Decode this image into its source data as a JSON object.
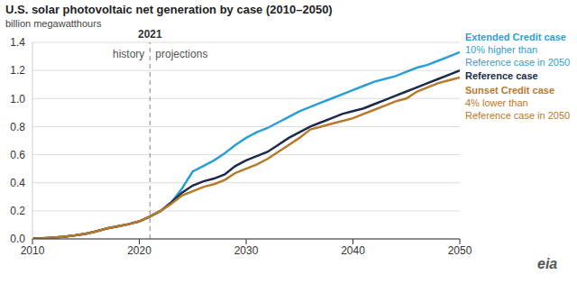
{
  "chart_data": {
    "type": "line",
    "title": "U.S. solar photovoltaic net generation by case (2010–2050)",
    "subtitle": "billion megawatthours",
    "x": [
      2010,
      2011,
      2012,
      2013,
      2014,
      2015,
      2016,
      2017,
      2018,
      2019,
      2020,
      2021,
      2022,
      2023,
      2024,
      2025,
      2026,
      2027,
      2028,
      2029,
      2030,
      2031,
      2032,
      2033,
      2034,
      2035,
      2036,
      2037,
      2038,
      2039,
      2040,
      2041,
      2042,
      2043,
      2044,
      2045,
      2046,
      2047,
      2048,
      2049,
      2050
    ],
    "xlim": [
      2010,
      2050
    ],
    "xticks": [
      2010,
      2020,
      2030,
      2040,
      2050
    ],
    "ylim": [
      0,
      1.4
    ],
    "yticks": [
      {
        "value": 0,
        "label": "0.0"
      },
      0.2,
      0.4,
      0.6,
      0.8,
      {
        "value": 1,
        "label": "1.0"
      },
      1.2,
      1.4
    ],
    "grid": true,
    "x_marker": {
      "x": 2021,
      "label": "2021",
      "left_text": "history",
      "right_text": "projections"
    },
    "logo": "eia",
    "series": [
      {
        "name": "Extended Credit case",
        "color": "#2a9fd6",
        "note": [
          "10% higher than",
          "Reference case in 2050"
        ],
        "values": [
          0.003,
          0.005,
          0.01,
          0.016,
          0.025,
          0.037,
          0.055,
          0.075,
          0.09,
          0.105,
          0.125,
          0.16,
          0.2,
          0.26,
          0.36,
          0.48,
          0.52,
          0.56,
          0.61,
          0.67,
          0.72,
          0.76,
          0.79,
          0.83,
          0.87,
          0.91,
          0.94,
          0.97,
          1.0,
          1.03,
          1.06,
          1.09,
          1.12,
          1.14,
          1.16,
          1.19,
          1.22,
          1.24,
          1.27,
          1.3,
          1.33
        ]
      },
      {
        "name": "Reference case",
        "color": "#1b2a4a",
        "values": [
          0.003,
          0.005,
          0.01,
          0.016,
          0.025,
          0.037,
          0.055,
          0.075,
          0.09,
          0.105,
          0.125,
          0.16,
          0.2,
          0.26,
          0.33,
          0.38,
          0.41,
          0.43,
          0.46,
          0.52,
          0.56,
          0.59,
          0.62,
          0.67,
          0.72,
          0.76,
          0.8,
          0.83,
          0.86,
          0.89,
          0.91,
          0.93,
          0.96,
          0.99,
          1.02,
          1.05,
          1.08,
          1.11,
          1.14,
          1.17,
          1.2
        ]
      },
      {
        "name": "Sunset Credit case",
        "color": "#b8792a",
        "note": [
          "4% lower than",
          "Reference case in 2050"
        ],
        "values": [
          0.003,
          0.005,
          0.01,
          0.016,
          0.025,
          0.037,
          0.055,
          0.075,
          0.09,
          0.105,
          0.125,
          0.16,
          0.2,
          0.25,
          0.31,
          0.34,
          0.37,
          0.39,
          0.42,
          0.47,
          0.5,
          0.53,
          0.57,
          0.62,
          0.67,
          0.72,
          0.78,
          0.8,
          0.82,
          0.84,
          0.86,
          0.89,
          0.92,
          0.95,
          0.98,
          1.0,
          1.05,
          1.08,
          1.11,
          1.13,
          1.15
        ]
      }
    ]
  }
}
